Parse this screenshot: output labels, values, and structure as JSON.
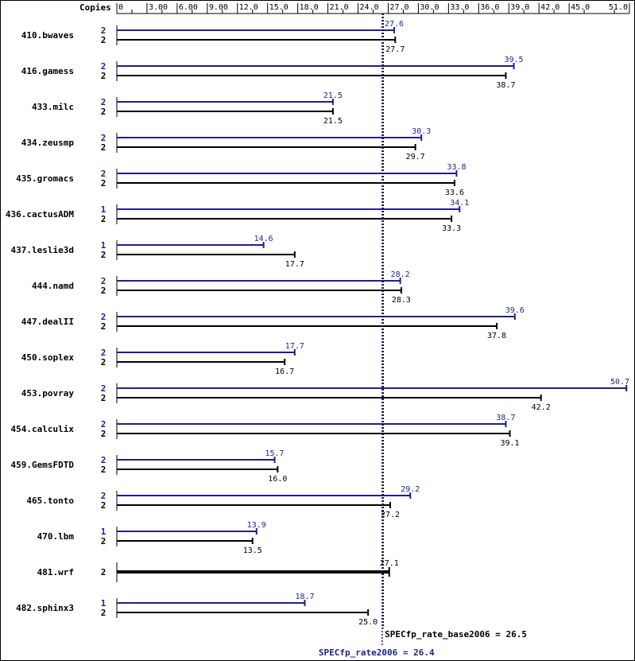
{
  "chart_data": {
    "type": "bar",
    "x_axis_label": "Copies",
    "x_ticks": [
      "0",
      "3.00",
      "6.00",
      "9.00",
      "12.0",
      "15.0",
      "18.0",
      "21.0",
      "24.0",
      "27.0",
      "30.0",
      "33.0",
      "36.0",
      "39.0",
      "42.0",
      "45.0",
      "51.0"
    ],
    "xlim": [
      0,
      51.0
    ],
    "colors": {
      "peak": "#1f1f8f",
      "base": "#000000"
    },
    "benchmarks": [
      {
        "name": "410.bwaves",
        "peak_copies": "2",
        "peak": 27.6,
        "base_copies": "2",
        "base": 27.7
      },
      {
        "name": "416.gamess",
        "peak_copies": "2",
        "peak": 39.5,
        "base_copies": "2",
        "base": 38.7
      },
      {
        "name": "433.milc",
        "peak_copies": "2",
        "peak": 21.5,
        "base_copies": "2",
        "base": 21.5
      },
      {
        "name": "434.zeusmp",
        "peak_copies": "2",
        "peak": 30.3,
        "base_copies": "2",
        "base": 29.7
      },
      {
        "name": "435.gromacs",
        "peak_copies": "2",
        "peak": 33.8,
        "base_copies": "2",
        "base": 33.6
      },
      {
        "name": "436.cactusADM",
        "peak_copies": "1",
        "peak": 34.1,
        "base_copies": "2",
        "base": 33.3
      },
      {
        "name": "437.leslie3d",
        "peak_copies": "1",
        "peak": 14.6,
        "base_copies": "2",
        "base": 17.7
      },
      {
        "name": "444.namd",
        "peak_copies": "2",
        "peak": 28.2,
        "base_copies": "2",
        "base": 28.3
      },
      {
        "name": "447.dealII",
        "peak_copies": "2",
        "peak": 39.6,
        "base_copies": "2",
        "base": 37.8
      },
      {
        "name": "450.soplex",
        "peak_copies": "2",
        "peak": 17.7,
        "base_copies": "2",
        "base": 16.7
      },
      {
        "name": "453.povray",
        "peak_copies": "2",
        "peak": 50.7,
        "base_copies": "2",
        "base": 42.2
      },
      {
        "name": "454.calculix",
        "peak_copies": "2",
        "peak": 38.7,
        "base_copies": "2",
        "base": 39.1
      },
      {
        "name": "459.GemsFDTD",
        "peak_copies": "2",
        "peak": 15.7,
        "base_copies": "2",
        "base": 16.0
      },
      {
        "name": "465.tonto",
        "peak_copies": "2",
        "peak": 29.2,
        "base_copies": "2",
        "base": 27.2
      },
      {
        "name": "470.lbm",
        "peak_copies": "1",
        "peak": 13.9,
        "base_copies": "2",
        "base": 13.5
      },
      {
        "name": "481.wrf",
        "peak_copies": null,
        "peak": null,
        "base_copies": "2",
        "base": 27.1
      },
      {
        "name": "482.sphinx3",
        "peak_copies": "1",
        "peak": 18.7,
        "base_copies": "2",
        "base": 25.0
      }
    ],
    "reference_lines": [
      {
        "label": "SPECfp_rate_base2006 = 26.5",
        "value": 26.5,
        "series": "base"
      },
      {
        "label": "SPECfp_rate2006 = 26.4",
        "value": 26.4,
        "series": "peak"
      }
    ]
  }
}
